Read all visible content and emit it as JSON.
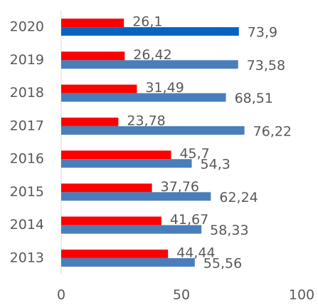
{
  "chart_data": {
    "type": "bar",
    "orientation": "horizontal",
    "categories": [
      "2020",
      "2019",
      "2018",
      "2017",
      "2016",
      "2015",
      "2014",
      "2013"
    ],
    "series": [
      {
        "color": "#ff0000",
        "values": [
          26.1,
          26.42,
          31.49,
          23.78,
          45.7,
          37.76,
          41.67,
          44.44
        ],
        "value_labels": [
          "26,1",
          "26,42",
          "31,49",
          "23,78",
          "45,7",
          "37,76",
          "41,67",
          "44,44"
        ]
      },
      {
        "color": "#4a7ebb",
        "colors": [
          "#0563c1",
          "#4a7ebb",
          "#4a7ebb",
          "#4a7ebb",
          "#4a7ebb",
          "#4a7ebb",
          "#4a7ebb",
          "#4a7ebb"
        ],
        "values": [
          73.9,
          73.58,
          68.51,
          76.22,
          54.3,
          62.24,
          58.33,
          55.56
        ],
        "value_labels": [
          "73,9",
          "73,58",
          "68,51",
          "76,22",
          "54,3",
          "62,24",
          "58,33",
          "55,56"
        ]
      }
    ],
    "xlim": [
      0,
      100
    ],
    "xticks": [
      0,
      50,
      100
    ]
  }
}
